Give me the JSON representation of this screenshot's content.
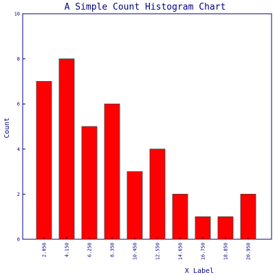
{
  "chart_data": {
    "type": "bar",
    "title": "A Simple Count Histogram Chart",
    "xlabel": "X Label",
    "ylabel": "Count",
    "categories": [
      "2.050",
      "4.150",
      "6.250",
      "8.350",
      "10.450",
      "12.550",
      "14.650",
      "16.750",
      "18.850",
      "20.950"
    ],
    "values": [
      7,
      8,
      5,
      6,
      3,
      4,
      2,
      1,
      1,
      2
    ],
    "ylim": [
      0,
      10
    ],
    "yticks": [
      "0",
      "2",
      "4",
      "6",
      "8",
      "10"
    ],
    "grid": false,
    "legend": "none"
  },
  "colors": {
    "bar_fill": "#ff0000",
    "bar_stroke": "#404040",
    "axis": "#000080",
    "text": "#000080",
    "background": "#ffffff"
  }
}
